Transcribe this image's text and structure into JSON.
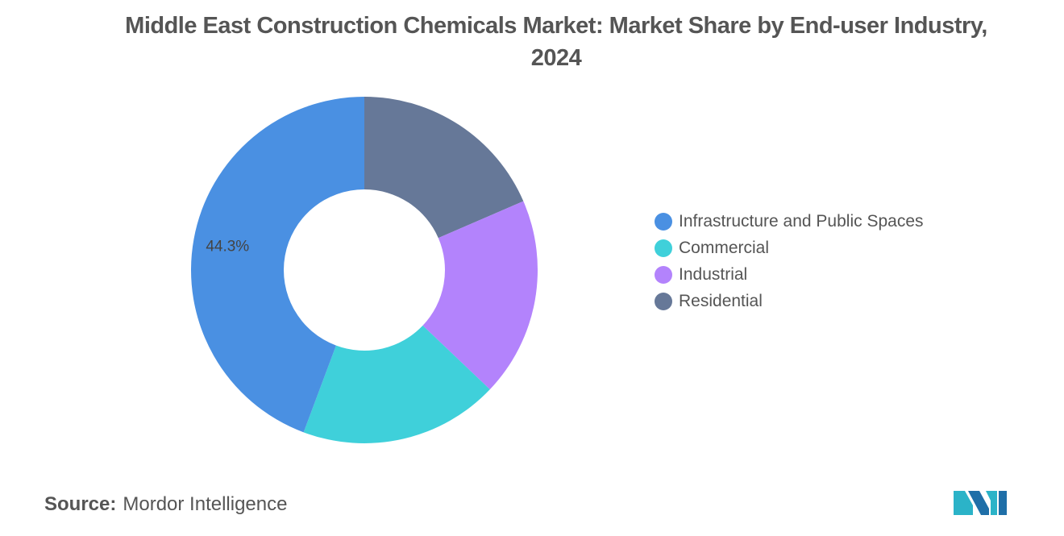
{
  "title": "Middle East Construction Chemicals Market: Market Share by End-user Industry, 2024",
  "source_label": "Source:",
  "source_value": "Mordor Intelligence",
  "logo_text": "Mordor Intelligence",
  "chart_data": {
    "type": "pie",
    "donut": true,
    "title": "Middle East Construction Chemicals Market: Market Share by End-user Industry, 2024",
    "unit": "%",
    "categories": [
      "Infrastructure and Public Spaces",
      "Commercial",
      "Industrial",
      "Residential"
    ],
    "values": [
      44.3,
      18.6,
      18.6,
      18.5
    ],
    "colors": [
      "#4a90e2",
      "#3fd0da",
      "#b383fc",
      "#667898"
    ],
    "data_labels": [
      "44.3%",
      "",
      "",
      ""
    ],
    "legend_placement": "right"
  }
}
